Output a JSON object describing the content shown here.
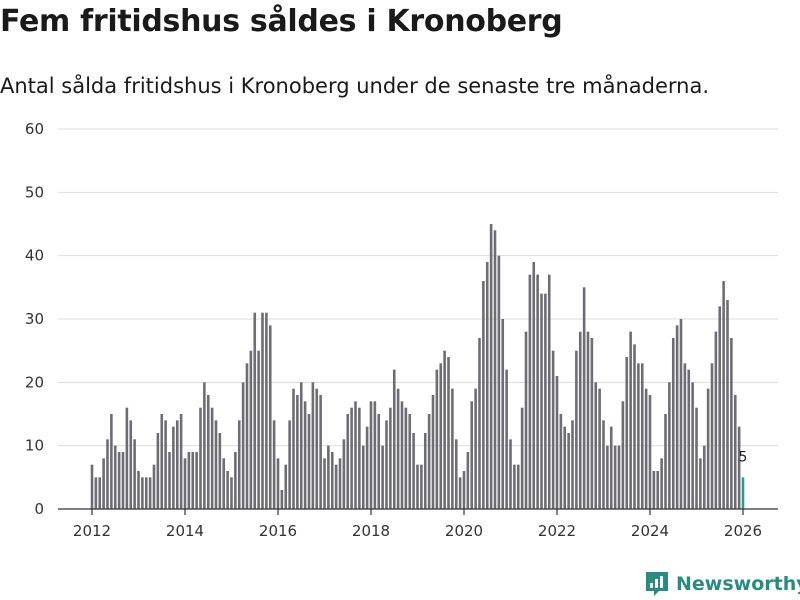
{
  "title": "Fem fritidshus såldes i Kronoberg",
  "subtitle": "Antal sålda fritidshus i Kronoberg under de senaste tre månaderna.",
  "brand": "Newsworthy",
  "colors": {
    "bar": "#6e6d73",
    "highlight": "#2a9d8f",
    "grid": "#dddddd",
    "axis": "#333333",
    "brand": "#2a8c80"
  },
  "chart_data": {
    "type": "bar",
    "title": "Fem fritidshus såldes i Kronoberg",
    "xlabel": "",
    "ylabel": "",
    "ylim": [
      0,
      60
    ],
    "yticks": [
      0,
      10,
      20,
      30,
      40,
      50,
      60
    ],
    "xticks": [
      {
        "label": "2012",
        "index": 0
      },
      {
        "label": "2014",
        "index": 24
      },
      {
        "label": "2016",
        "index": 48
      },
      {
        "label": "2018",
        "index": 72
      },
      {
        "label": "2020",
        "index": 96
      },
      {
        "label": "2022",
        "index": 120
      },
      {
        "label": "2024",
        "index": 144
      },
      {
        "label": "2026",
        "index": 168
      }
    ],
    "start": "2012-01",
    "grid": true,
    "highlight_index": 168,
    "highlight_label": "5",
    "values": [
      7,
      5,
      5,
      8,
      11,
      15,
      10,
      9,
      9,
      16,
      14,
      11,
      6,
      5,
      5,
      5,
      7,
      12,
      15,
      14,
      9,
      13,
      14,
      15,
      8,
      9,
      9,
      9,
      16,
      20,
      18,
      16,
      14,
      12,
      8,
      6,
      5,
      9,
      14,
      20,
      23,
      25,
      31,
      25,
      31,
      31,
      29,
      14,
      8,
      3,
      7,
      14,
      19,
      18,
      20,
      17,
      15,
      20,
      19,
      18,
      8,
      10,
      9,
      7,
      8,
      11,
      15,
      16,
      17,
      16,
      10,
      13,
      17,
      17,
      15,
      10,
      14,
      16,
      22,
      19,
      17,
      16,
      15,
      12,
      7,
      7,
      12,
      15,
      18,
      22,
      23,
      25,
      24,
      19,
      11,
      5,
      6,
      9,
      17,
      19,
      27,
      36,
      39,
      45,
      44,
      40,
      30,
      22,
      11,
      7,
      7,
      16,
      28,
      37,
      39,
      37,
      34,
      34,
      37,
      25,
      21,
      15,
      13,
      12,
      14,
      25,
      28,
      35,
      28,
      27,
      20,
      19,
      14,
      10,
      13,
      10,
      10,
      17,
      24,
      28,
      26,
      23,
      23,
      19,
      18,
      6,
      6,
      8,
      15,
      20,
      27,
      29,
      30,
      23,
      22,
      20,
      16,
      8,
      10,
      19,
      23,
      28,
      32,
      36,
      33,
      27,
      18,
      13,
      5
    ]
  }
}
